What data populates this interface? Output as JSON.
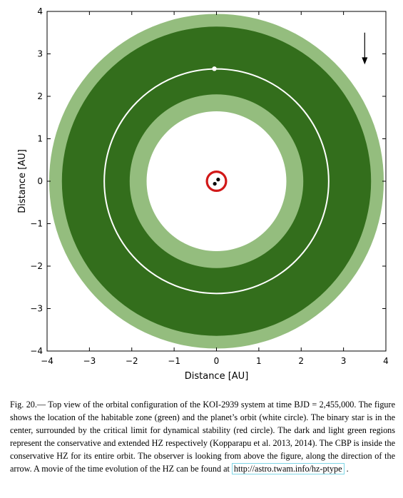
{
  "figure": {
    "xlabel": "Distance [AU]",
    "ylabel": "Distance [AU]",
    "xticks": [
      "−4",
      "−3",
      "−2",
      "−1",
      "0",
      "1",
      "2",
      "3",
      "4"
    ],
    "yticks": [
      "4",
      "3",
      "2",
      "1",
      "0",
      "−1",
      "−2",
      "−3",
      "−4"
    ],
    "colors": {
      "conservative_hz": "#336e1c",
      "extended_hz": "#94bd7e",
      "orbit": "#ffffff",
      "stability_limit": "#d11818",
      "stars": "#000000"
    }
  },
  "chart_data": {
    "type": "scatter",
    "xlim": [
      -4,
      4
    ],
    "ylim": [
      -4,
      4
    ],
    "grid": false,
    "regions": [
      {
        "kind": "extended_hz",
        "inner_radius": 1.65,
        "outer_radius": 3.95,
        "color": "#94bd7e"
      },
      {
        "kind": "conservative_hz",
        "inner_radius": 2.05,
        "outer_radius": 3.65,
        "color": "#336e1c"
      }
    ],
    "orbit": {
      "radius": 2.65,
      "color": "#ffffff"
    },
    "planet": {
      "x": -0.05,
      "y": 2.65
    },
    "stability_limit": {
      "radius": 0.22,
      "color": "#d11818"
    },
    "stars": [
      {
        "x": -0.04,
        "y": -0.06
      },
      {
        "x": 0.04,
        "y": 0.04
      }
    ],
    "arrow": {
      "x": 3.5,
      "y_start": 3.5,
      "y_end": 2.75,
      "direction": "down"
    }
  },
  "caption": {
    "part1": "Fig. 20.— Top view of the orbital configuration of the KOI-2939 system at time BJD = 2,455,000. The figure shows the location of the habitable zone (green) and the planet’s orbit (white circle). The binary star is in the center, surrounded by the critical limit for dynamical stability (red circle). The dark and light green regions represent the conservative and extended HZ respectively (Kopparapu et al. 2013, 2014). The CBP is inside the conservative HZ for its entire orbit. The observer is looking from above the figure, along the direction of the arrow. A movie of the time evolution of the HZ can be found at ",
    "link": "http://astro.twam.info/hz-ptype",
    "part2": " ."
  }
}
